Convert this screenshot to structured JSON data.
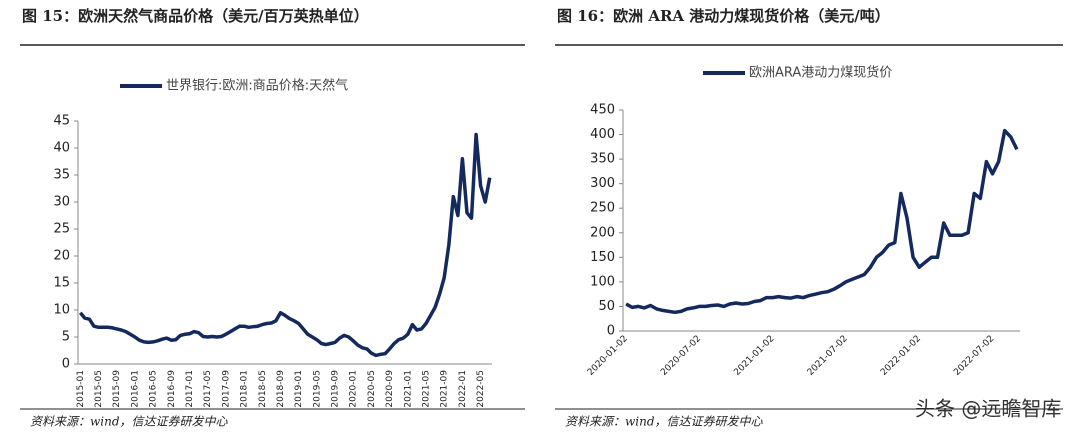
{
  "chart_data": [
    {
      "type": "line",
      "title": "图 15：欧洲天然气商品价格（美元/百万英热单位）",
      "categories": [
        "2015-01",
        null,
        null,
        null,
        "2015-05",
        null,
        null,
        null,
        "2015-09",
        null,
        null,
        null,
        "2016-01",
        null,
        null,
        null,
        "2016-05",
        null,
        null,
        null,
        "2016-09",
        null,
        null,
        null,
        "2017-01",
        null,
        null,
        null,
        "2017-05",
        null,
        null,
        null,
        "2017-09",
        null,
        null,
        null,
        "2018-01",
        null,
        null,
        null,
        "2018-05",
        null,
        null,
        null,
        "2018-09",
        null,
        null,
        null,
        "2019-01",
        null,
        null,
        null,
        "2019-05",
        null,
        null,
        null,
        "2019-09",
        null,
        null,
        null,
        "2020-01",
        null,
        null,
        null,
        "2020-05",
        null,
        null,
        null,
        "2020-09",
        null,
        null,
        null,
        "2021-01",
        null,
        null,
        null,
        "2021-05",
        null,
        null,
        null,
        "2021-09",
        null,
        null,
        null,
        "2022-01",
        null,
        null,
        null,
        "2022-05",
        null,
        null
      ],
      "series": [
        {
          "name": "世界银行:欧洲:商品价格:天然气",
          "color": "#14295e",
          "values": [
            9.5,
            8.5,
            8.3,
            7,
            6.8,
            6.8,
            6.8,
            6.7,
            6.5,
            6.3,
            6,
            5.5,
            5,
            4.4,
            4.1,
            4,
            4.1,
            4.3,
            4.6,
            4.8,
            4.4,
            4.5,
            5.3,
            5.5,
            5.6,
            6,
            5.8,
            5.1,
            5,
            5.1,
            5,
            5.1,
            5.5,
            6,
            6.5,
            7,
            7,
            6.8,
            6.9,
            7,
            7.3,
            7.5,
            7.6,
            8,
            9.5,
            9,
            8.4,
            8,
            7.5,
            6.5,
            5.5,
            5,
            4.5,
            3.8,
            3.6,
            3.8,
            4,
            4.8,
            5.3,
            5,
            4.3,
            3.5,
            3,
            2.8,
            2,
            1.6,
            1.8,
            1.9,
            2.8,
            3.8,
            4.5,
            4.8,
            5.5,
            7.3,
            6.3,
            6.5,
            7.5,
            9,
            10.5,
            13,
            16,
            22,
            31,
            27.5,
            38,
            28,
            27,
            42.5,
            33,
            30,
            34.5
          ]
        }
      ],
      "ylim": [
        0,
        45
      ],
      "yticks": [
        0,
        5,
        10,
        15,
        20,
        25,
        30,
        35,
        40,
        45
      ],
      "source": "资料来源：wind，信达证券研发中心"
    },
    {
      "type": "line",
      "title": "图 16：欧洲 ARA 港动力煤现货价格（美元/吨）",
      "categories": [
        "2020-01-02",
        null,
        null,
        null,
        null,
        null,
        null,
        null,
        null,
        null,
        null,
        null,
        "2020-07-02",
        null,
        null,
        null,
        null,
        null,
        null,
        null,
        null,
        null,
        null,
        null,
        "2021-01-02",
        null,
        null,
        null,
        null,
        null,
        null,
        null,
        null,
        null,
        null,
        null,
        "2021-07-02",
        null,
        null,
        null,
        null,
        null,
        null,
        null,
        null,
        null,
        null,
        null,
        "2022-01-02",
        null,
        null,
        null,
        null,
        null,
        null,
        null,
        null,
        null,
        null,
        null,
        "2022-07-02",
        null,
        null,
        null,
        null
      ],
      "series": [
        {
          "name": "欧洲ARA港动力煤现货价",
          "color": "#14295e",
          "values": [
            55,
            48,
            50,
            47,
            52,
            45,
            42,
            40,
            38,
            40,
            45,
            47,
            50,
            50,
            52,
            53,
            50,
            55,
            57,
            55,
            56,
            60,
            62,
            68,
            68,
            70,
            68,
            67,
            70,
            68,
            72,
            75,
            78,
            80,
            85,
            92,
            100,
            105,
            110,
            115,
            130,
            150,
            160,
            175,
            180,
            280,
            230,
            150,
            130,
            140,
            150,
            150,
            220,
            195,
            195,
            195,
            200,
            280,
            270,
            345,
            320,
            345,
            408,
            395,
            370
          ]
        }
      ],
      "ylim": [
        0,
        450
      ],
      "yticks": [
        0,
        50,
        100,
        150,
        200,
        250,
        300,
        350,
        400,
        450
      ],
      "source": "资料来源：wind，信达证券研发中心"
    }
  ],
  "watermark": "头条 @远瞻智库"
}
